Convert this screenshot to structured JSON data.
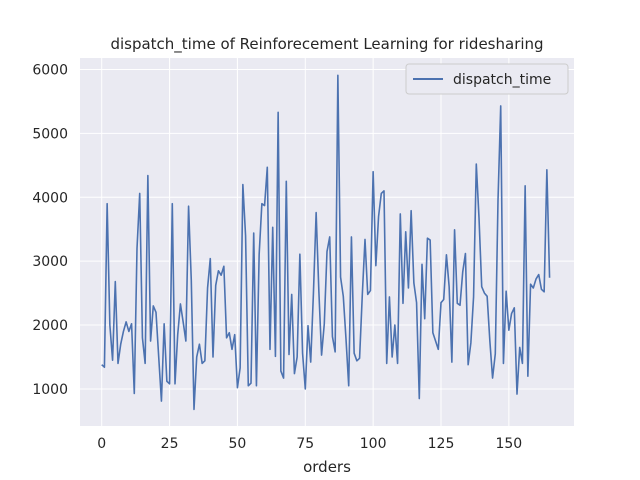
{
  "chart_data": {
    "type": "line",
    "title": "dispatch_time of Reinforecement Learning for ridesharing",
    "xlabel": "orders",
    "ylabel": "",
    "xlim": [
      -8,
      174
    ],
    "ylim": [
      420,
      6180
    ],
    "x_ticks": [
      0,
      25,
      50,
      75,
      100,
      125,
      150
    ],
    "y_ticks": [
      1000,
      2000,
      3000,
      4000,
      5000,
      6000
    ],
    "grid": true,
    "legend_position": "upper right",
    "colors": {
      "background": "#eaeaf2",
      "grid": "#ffffff",
      "line": "#4c72b0"
    },
    "series": [
      {
        "name": "dispatch_time",
        "values": [
          1380,
          1340,
          3900,
          2000,
          1450,
          2680,
          1400,
          1700,
          1900,
          2050,
          1900,
          2020,
          930,
          3200,
          4060,
          1800,
          1400,
          4340,
          1750,
          2300,
          2200,
          1500,
          810,
          2020,
          1120,
          1080,
          3900,
          1080,
          1850,
          2330,
          2050,
          1750,
          3860,
          2700,
          680,
          1500,
          1700,
          1400,
          1440,
          2580,
          3040,
          1500,
          2620,
          2850,
          2780,
          2920,
          1800,
          1880,
          1620,
          1850,
          1020,
          1330,
          4200,
          3400,
          1050,
          1090,
          3440,
          1050,
          3100,
          3900,
          3870,
          4470,
          1620,
          3530,
          1510,
          5330,
          1280,
          1170,
          4250,
          1540,
          2480,
          1240,
          1500,
          3110,
          1560,
          1000,
          1990,
          1420,
          2500,
          3760,
          2530,
          1530,
          2020,
          3150,
          3380,
          1820,
          1580,
          5910,
          2750,
          2450,
          1780,
          1050,
          3380,
          1560,
          1440,
          1480,
          2470,
          3340,
          2480,
          2540,
          4400,
          2930,
          3700,
          4060,
          4100,
          1400,
          2440,
          1500,
          2000,
          1400,
          3740,
          2340,
          3460,
          2580,
          3790,
          2660,
          2350,
          850,
          2950,
          2100,
          3360,
          3330,
          1880,
          1750,
          1620,
          2350,
          2400,
          3100,
          2600,
          1420,
          3490,
          2340,
          2310,
          2830,
          3120,
          1380,
          1720,
          2440,
          4520,
          3680,
          2600,
          2500,
          2450,
          1750,
          1170,
          1550,
          3950,
          5430,
          1400,
          2530,
          1920,
          2180,
          2270,
          920,
          1650,
          1400,
          4180,
          1200,
          2640,
          2580,
          2720,
          2790,
          2560,
          2520,
          4430,
          2740
        ]
      }
    ]
  }
}
